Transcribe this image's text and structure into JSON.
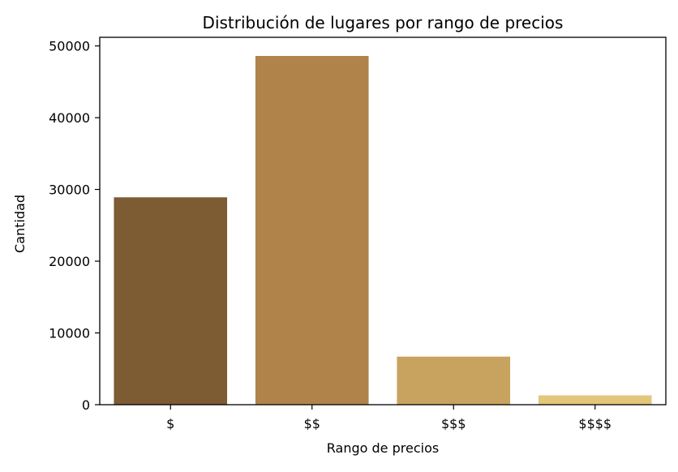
{
  "chart_data": {
    "type": "bar",
    "title": "Distribución de lugares por rango de precios",
    "xlabel": "Rango de precios",
    "ylabel": "Cantidad",
    "categories": [
      "$",
      "$$",
      "$$$",
      "$$$$"
    ],
    "values": [
      28900,
      48600,
      6700,
      1300
    ],
    "colors": [
      "#7d5b33",
      "#b0834b",
      "#c8a35f",
      "#e2c77a"
    ],
    "ylim": [
      0,
      51200
    ],
    "yticks": [
      0,
      10000,
      20000,
      30000,
      40000,
      50000
    ],
    "ytick_labels": [
      "0",
      "10000",
      "20000",
      "30000",
      "40000",
      "50000"
    ],
    "grid": false,
    "legend": "none"
  }
}
